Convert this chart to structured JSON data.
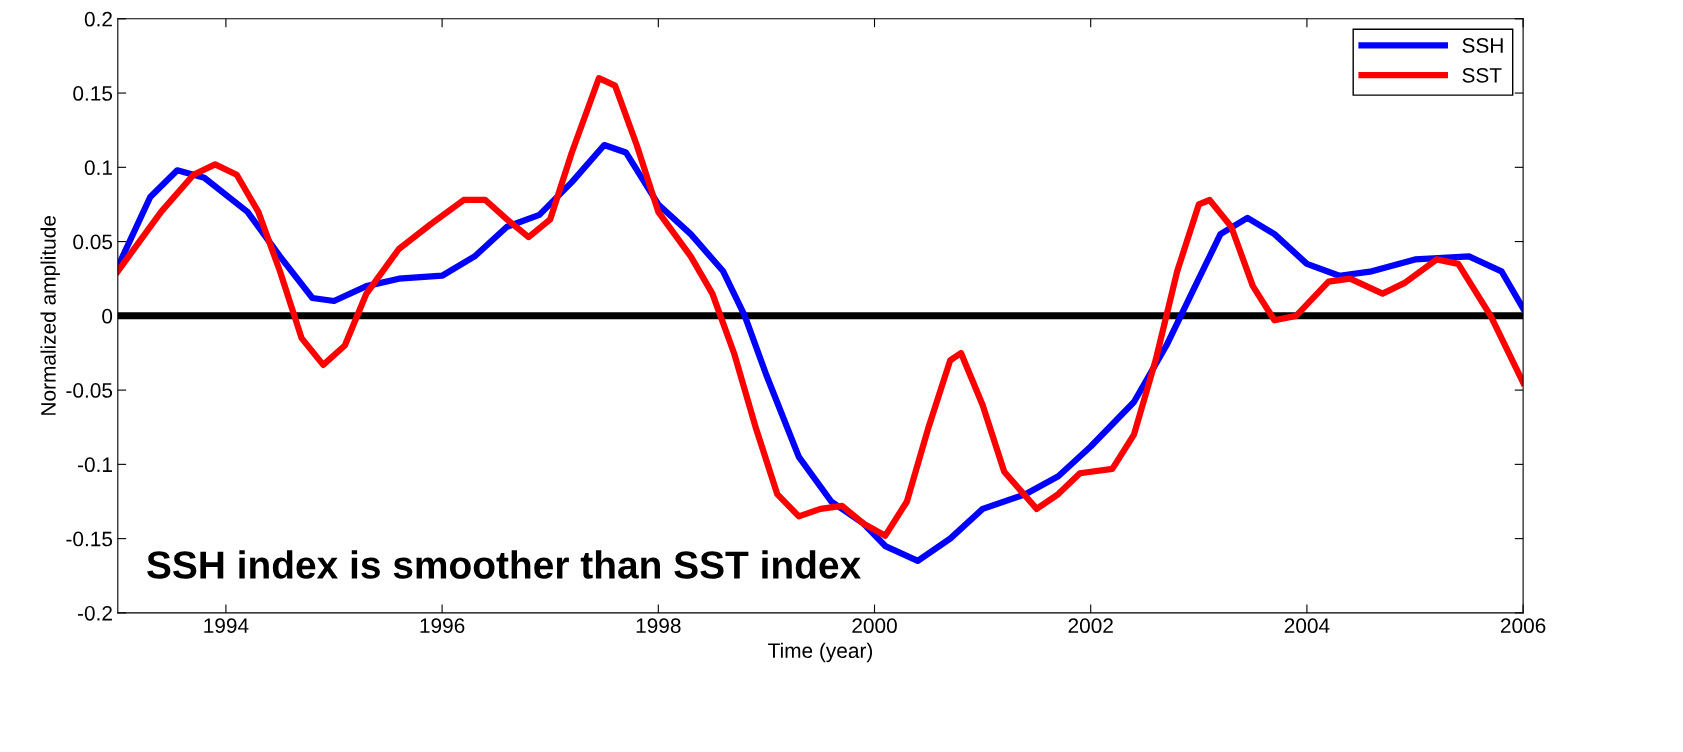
{
  "chart_data": {
    "type": "line",
    "xlabel": "Time (year)",
    "ylabel": "Normalized amplitude",
    "xlim": [
      1993,
      2006
    ],
    "xticks": [
      1994,
      1996,
      1998,
      2000,
      2002,
      2004,
      2006
    ],
    "ylim": [
      -0.2,
      0.2
    ],
    "yticks": [
      -0.2,
      -0.15,
      -0.1,
      -0.05,
      0,
      0.05,
      0.1,
      0.15,
      0.2
    ],
    "grid": false,
    "legend": "top right",
    "marker": "none",
    "line_style": "solid",
    "ref_lines": [
      {
        "axis": "y",
        "value": 0,
        "color": "#000000",
        "line_style": "solid"
      }
    ],
    "annotations": [
      "SSH index is smoother than SST index"
    ],
    "series": [
      {
        "name": "SSH",
        "color": "#0000ff",
        "x": [
          1993.0,
          1993.3,
          1993.55,
          1993.8,
          1994.2,
          1994.5,
          1994.8,
          1995.0,
          1995.3,
          1995.6,
          1996.0,
          1996.3,
          1996.6,
          1996.9,
          1997.2,
          1997.5,
          1997.7,
          1998.0,
          1998.3,
          1998.6,
          1998.8,
          1999.0,
          1999.3,
          1999.6,
          1999.9,
          2000.1,
          2000.4,
          2000.7,
          2001.0,
          2001.4,
          2001.7,
          2002.0,
          2002.4,
          2002.7,
          2003.0,
          2003.2,
          2003.45,
          2003.7,
          2004.0,
          2004.3,
          2004.6,
          2005.0,
          2005.5,
          2005.8,
          2006.0
        ],
        "values": [
          0.033,
          0.08,
          0.098,
          0.093,
          0.07,
          0.04,
          0.012,
          0.01,
          0.02,
          0.025,
          0.027,
          0.04,
          0.06,
          0.068,
          0.09,
          0.115,
          0.11,
          0.075,
          0.055,
          0.03,
          0.0,
          -0.04,
          -0.095,
          -0.125,
          -0.14,
          -0.155,
          -0.165,
          -0.15,
          -0.13,
          -0.12,
          -0.108,
          -0.088,
          -0.058,
          -0.02,
          0.025,
          0.055,
          0.066,
          0.055,
          0.035,
          0.027,
          0.03,
          0.038,
          0.04,
          0.03,
          0.005
        ]
      },
      {
        "name": "SST",
        "color": "#ff0000",
        "x": [
          1993.0,
          1993.4,
          1993.7,
          1993.9,
          1994.1,
          1994.3,
          1994.5,
          1994.7,
          1994.9,
          1995.1,
          1995.3,
          1995.6,
          1995.9,
          1996.2,
          1996.4,
          1996.6,
          1996.8,
          1997.0,
          1997.2,
          1997.45,
          1997.6,
          1997.8,
          1998.0,
          1998.3,
          1998.5,
          1998.7,
          1998.9,
          1999.1,
          1999.3,
          1999.5,
          1999.7,
          1999.9,
          2000.1,
          2000.3,
          2000.5,
          2000.7,
          2000.8,
          2001.0,
          2001.2,
          2001.5,
          2001.7,
          2001.9,
          2002.2,
          2002.4,
          2002.6,
          2002.8,
          2003.0,
          2003.1,
          2003.3,
          2003.5,
          2003.7,
          2003.9,
          2004.2,
          2004.4,
          2004.7,
          2004.9,
          2005.2,
          2005.4,
          2005.7,
          2006.0
        ],
        "values": [
          0.03,
          0.07,
          0.095,
          0.102,
          0.095,
          0.07,
          0.03,
          -0.015,
          -0.033,
          -0.02,
          0.015,
          0.045,
          0.062,
          0.078,
          0.078,
          0.065,
          0.053,
          0.065,
          0.11,
          0.16,
          0.155,
          0.115,
          0.07,
          0.04,
          0.015,
          -0.025,
          -0.075,
          -0.12,
          -0.135,
          -0.13,
          -0.128,
          -0.14,
          -0.148,
          -0.125,
          -0.075,
          -0.03,
          -0.025,
          -0.06,
          -0.105,
          -0.13,
          -0.12,
          -0.106,
          -0.103,
          -0.08,
          -0.03,
          0.03,
          0.075,
          0.078,
          0.06,
          0.02,
          -0.003,
          0.0,
          0.023,
          0.025,
          0.015,
          0.022,
          0.038,
          0.035,
          0.0,
          -0.045
        ]
      }
    ]
  }
}
